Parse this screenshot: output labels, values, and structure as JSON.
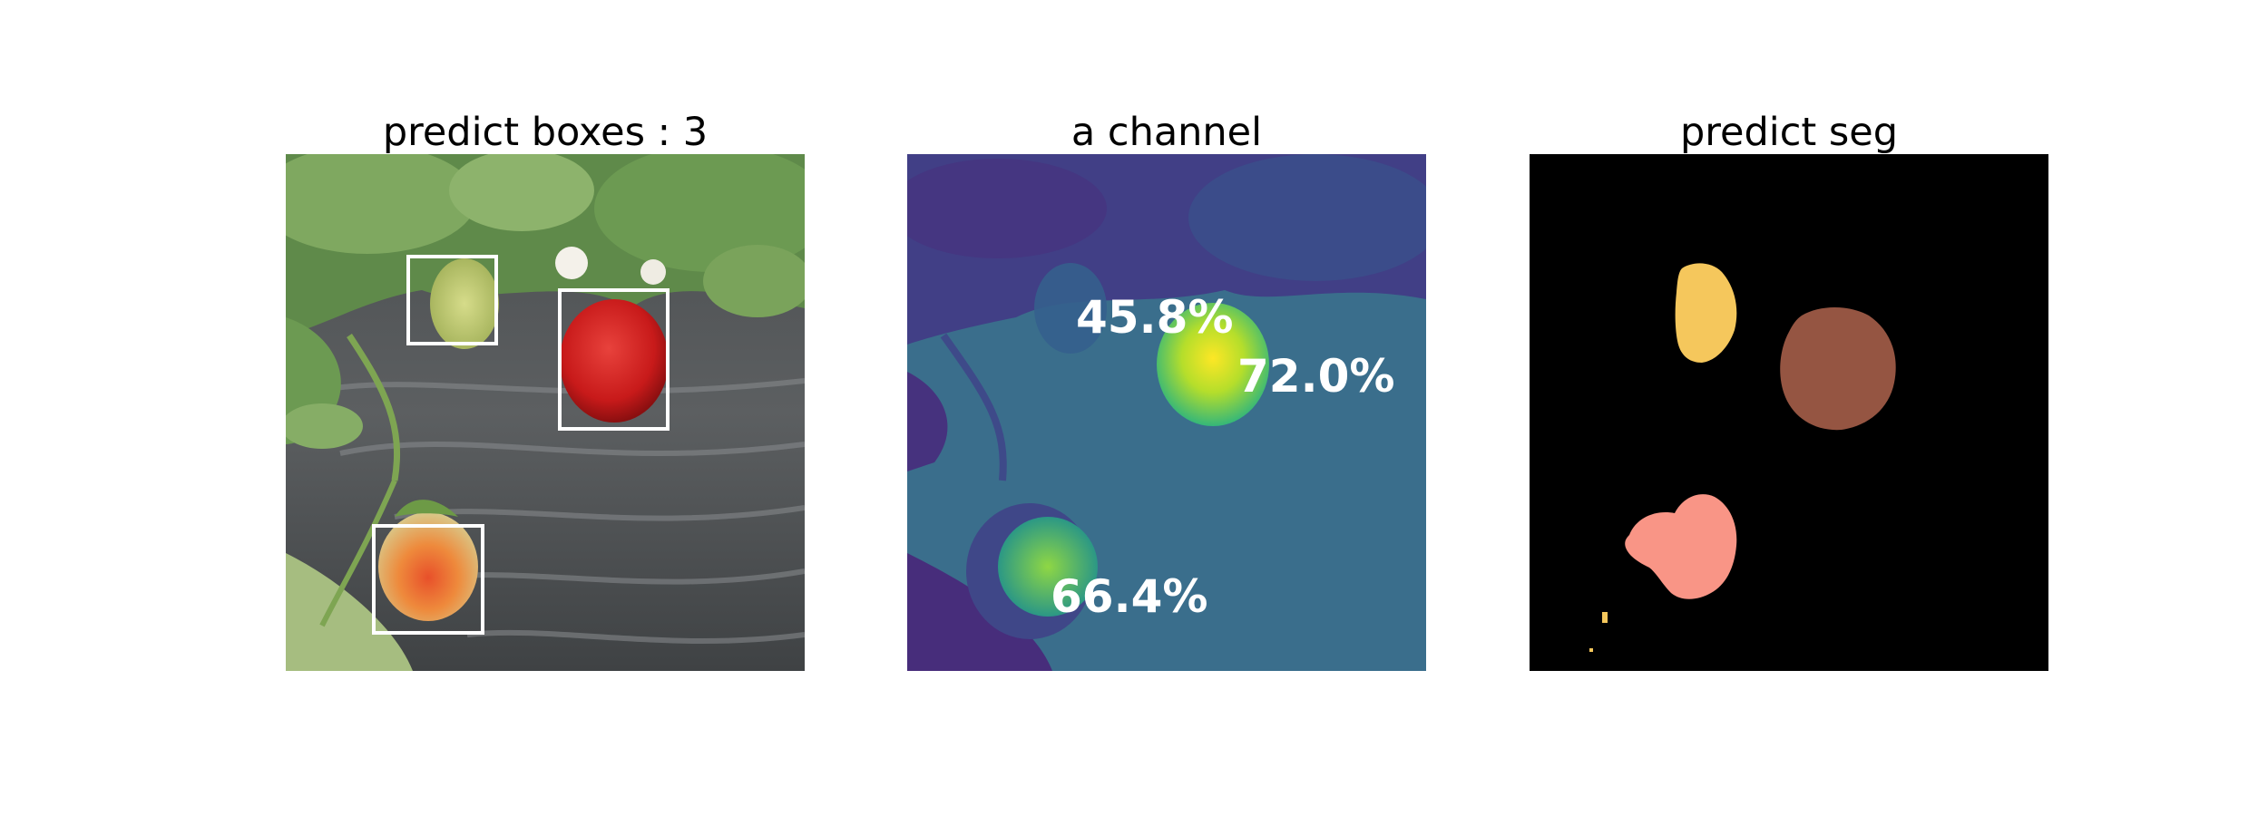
{
  "panels": [
    {
      "title": "predict boxes : 3"
    },
    {
      "title": "a channel",
      "scores": [
        "45.8%",
        "72.0%",
        "66.4%"
      ]
    },
    {
      "title": "predict seg"
    }
  ],
  "colors": {
    "box_outline": "#ffffff",
    "heat_background": "#3a6e8c",
    "seg_background": "#000000",
    "seg_mask_1": "#f5c75c",
    "seg_mask_2": "#955542",
    "seg_mask_3": "#f99586"
  }
}
